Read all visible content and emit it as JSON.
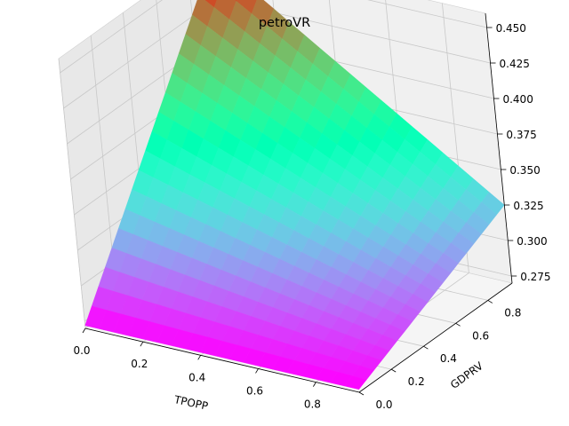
{
  "chart_data": {
    "type": "surface3d",
    "title": "petroVR",
    "xlabel": "TPOPP",
    "ylabel": "GDPRV",
    "zlabel": "",
    "x_ticks": [
      "0.0",
      "0.2",
      "0.4",
      "0.6",
      "0.8"
    ],
    "y_ticks": [
      "0.0",
      "0.2",
      "0.4",
      "0.6",
      "0.8"
    ],
    "z_ticks": [
      "0.275",
      "0.300",
      "0.325",
      "0.350",
      "0.375",
      "0.400",
      "0.425",
      "0.450"
    ],
    "x_range": [
      0.0,
      0.95
    ],
    "y_range": [
      0.0,
      0.95
    ],
    "z_range": [
      0.27,
      0.46
    ],
    "grid_steps": 19,
    "colormap": "rainbow",
    "corners": {
      "x0_y0": 0.272,
      "x1_y0": 0.272,
      "x0_y1": 0.455,
      "x1_y1": 0.325
    },
    "grid": true,
    "pane_colors": {
      "left": "#e8e8e8",
      "right": "#f0f0f0",
      "floor": "#f5f5f5"
    }
  }
}
